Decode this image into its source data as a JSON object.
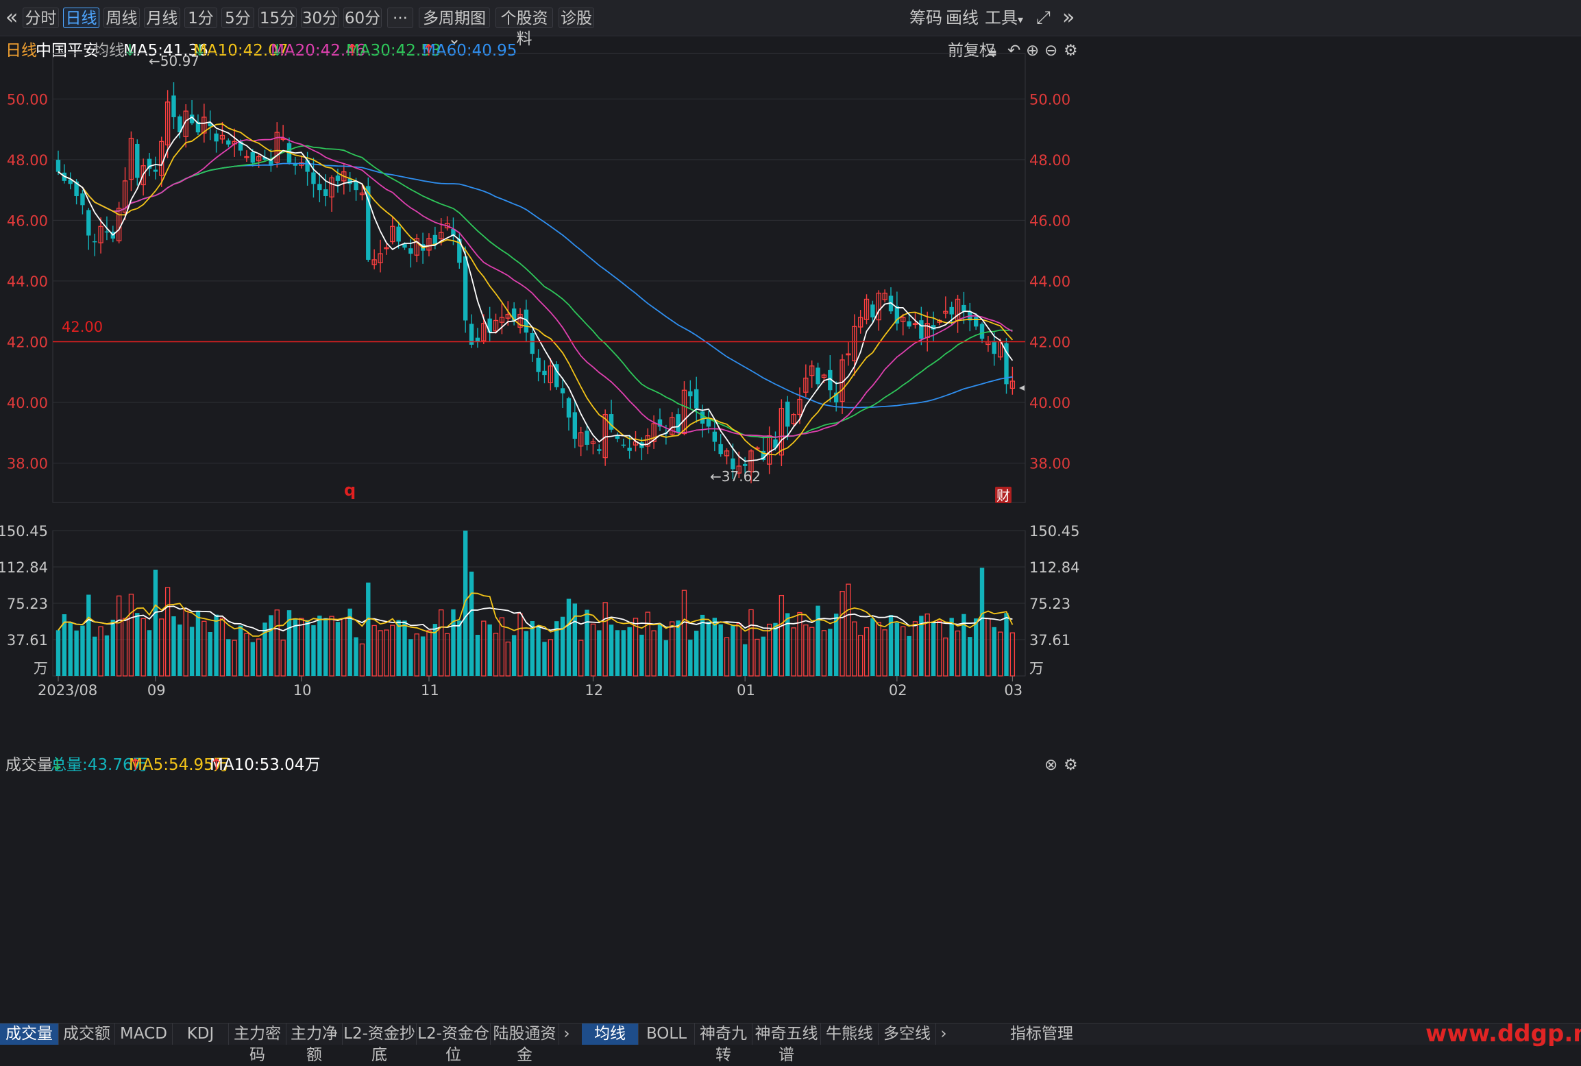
{
  "toolbar": {
    "left_icon": "«",
    "periods": [
      "分时",
      "日线",
      "周线",
      "月线",
      "1分",
      "5分",
      "15分",
      "30分",
      "60分"
    ],
    "active_period": "日线",
    "more": "···",
    "multi": "多周期图",
    "profile": "个股资料",
    "diagnose": "诊股",
    "right": [
      "筹码",
      "画线",
      "工具"
    ],
    "expand_icon": "expand-icon",
    "right_icon": "»"
  },
  "info": {
    "period": "日线",
    "stock": "中国平安",
    "ma_label": "均线",
    "ma5": "MA5:41.36",
    "ma10": "MA10:42.07",
    "ma20": "MA20:42.46",
    "ma30": "MA30:42.53",
    "ma60": "MA60:40.95",
    "fq": "前复权"
  },
  "volume_info": {
    "label": "成交量",
    "total": "总量:43.76万",
    "ma5": "MA5:54.95万",
    "ma10": "MA10:53.04万"
  },
  "colors": {
    "up": "#ff4040",
    "down": "#12b3bb",
    "ma5": "#ffffff",
    "ma10": "#f5c518",
    "ma20": "#e040b0",
    "ma30": "#2ec85a",
    "ma60": "#2f8ff0",
    "hline": "#e02020"
  },
  "chart_data": {
    "type": "candlestick",
    "price_ticks": [
      "50.00",
      "48.00",
      "46.00",
      "44.00",
      "42.00",
      "40.00",
      "38.00"
    ],
    "price_range": [
      36.7,
      51.5
    ],
    "hline_value": 42.0,
    "hline_label": "42.00",
    "high_mark": "←50.97",
    "low_mark": "←37.62",
    "marker_q": "q",
    "marker_cai": "财",
    "volume_ticks": [
      "150.45",
      "112.84",
      "75.23",
      "37.61",
      "万"
    ],
    "volume_range": [
      0,
      150.45
    ],
    "x_labels": [
      "2023/08",
      "09",
      "10",
      "11",
      "12",
      "01",
      "02",
      "03"
    ],
    "x_label_index": [
      0,
      16,
      40,
      61,
      88,
      113,
      138,
      157
    ],
    "close": [
      47.6,
      47.3,
      47.2,
      46.8,
      46.5,
      45.5,
      45.3,
      45.8,
      45.6,
      45.4,
      46.4,
      47.3,
      48.7,
      47.4,
      47.8,
      47.7,
      47.6,
      48.6,
      49.9,
      49.4,
      48.9,
      49.6,
      49.2,
      48.9,
      49.4,
      49.1,
      48.6,
      48.8,
      48.5,
      48.6,
      48.3,
      48.1,
      47.9,
      48.1,
      48.0,
      47.8,
      48.9,
      48.7,
      47.9,
      47.8,
      47.9,
      47.6,
      47.2,
      47.0,
      46.8,
      47.4,
      47.3,
      47.6,
      47.2,
      47.0,
      46.9,
      44.7,
      44.7,
      44.9,
      45.1,
      45.8,
      45.3,
      45.1,
      44.9,
      45.4,
      45.0,
      45.4,
      45.2,
      45.6,
      45.9,
      45.5,
      44.6,
      42.7,
      41.9,
      42.0,
      42.6,
      42.3,
      42.7,
      42.8,
      42.9,
      42.7,
      42.9,
      42.3,
      41.6,
      41.0,
      40.9,
      41.2,
      40.5,
      40.3,
      39.5,
      38.8,
      39.0,
      38.6,
      38.7,
      38.4,
      39.6,
      39.1,
      38.8,
      38.6,
      38.4,
      38.7,
      38.5,
      38.9,
      39.3,
      39.2,
      39.0,
      39.5,
      39.0,
      40.4,
      40.2,
      39.8,
      39.3,
      39.2,
      38.7,
      38.3,
      38.4,
      37.8,
      37.9,
      37.9,
      38.4,
      38.5,
      38.1,
      38.9,
      38.5,
      39.8,
      39.2,
      39.6,
      40.1,
      40.8,
      41.2,
      40.6,
      40.9,
      40.4,
      40.0,
      41.4,
      41.6,
      42.5,
      42.8,
      43.4,
      42.8,
      43.6,
      43.6,
      43.0,
      42.6,
      42.8,
      42.5,
      42.6,
      42.1,
      42.6,
      42.4,
      42.7,
      43.0,
      42.9,
      43.4,
      43.0,
      42.7,
      42.5,
      42.1,
      42.0,
      41.6,
      42.0,
      40.6,
      40.7
    ]
  }
}
